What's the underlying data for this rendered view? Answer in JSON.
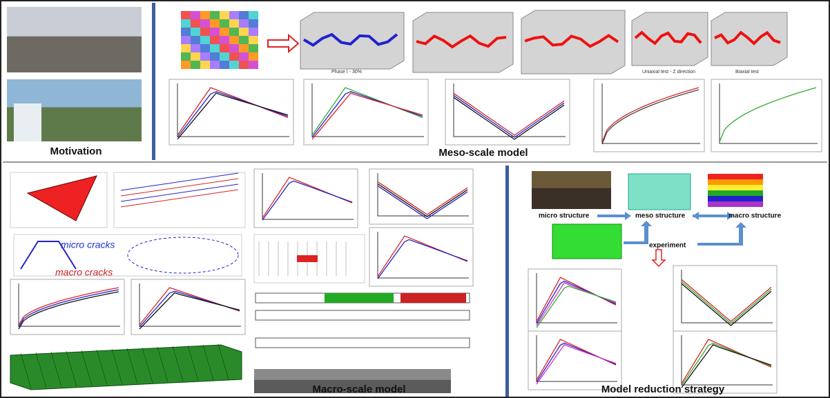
{
  "sections": {
    "motivation": {
      "title": "Motivation"
    },
    "meso": {
      "title": "Meso-scale model",
      "labels": [
        "Phase I - 30%",
        "Uniaxial test - Z direction",
        "Biaxial test"
      ]
    },
    "macro": {
      "title": "Macro-scale model",
      "labels": [
        "micro cracks",
        "macro cracks"
      ]
    },
    "reduction": {
      "title": "Model reduction strategy",
      "labels": [
        "micro structure",
        "meso structure",
        "macro structure",
        "experiment"
      ]
    }
  }
}
